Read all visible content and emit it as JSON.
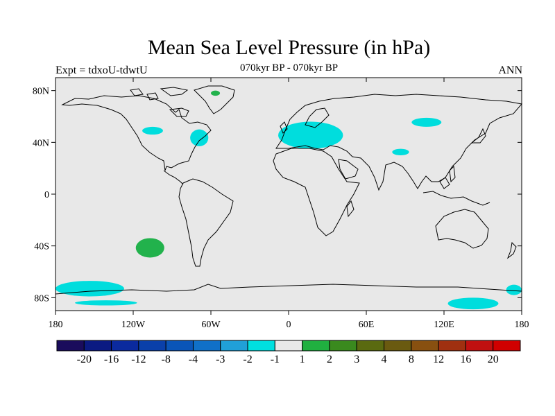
{
  "title": "Mean Sea Level Pressure (in hPa)",
  "subtitle": "070kyr BP - 070kyr BP",
  "left_label": "Expt = tdxoU-tdwtU",
  "right_label": "ANN",
  "map": {
    "lon_range": [
      -180,
      180
    ],
    "lat_range": [
      -90,
      90
    ],
    "background_color": "#e8e8e8",
    "x_ticks": [
      {
        "value": -180,
        "label": "180"
      },
      {
        "value": -120,
        "label": "120W"
      },
      {
        "value": -60,
        "label": "60W"
      },
      {
        "value": 0,
        "label": "0"
      },
      {
        "value": 60,
        "label": "60E"
      },
      {
        "value": 120,
        "label": "120E"
      },
      {
        "value": 180,
        "label": "180"
      }
    ],
    "y_ticks": [
      {
        "value": 80,
        "label": "80N"
      },
      {
        "value": 40,
        "label": "40N"
      },
      {
        "value": 0,
        "label": "0"
      },
      {
        "value": -40,
        "label": "40S"
      },
      {
        "value": -80,
        "label": "80S"
      }
    ],
    "anomalies": [
      {
        "region": "europe",
        "category": "-2 to -1",
        "color": "#00dddd",
        "lon": [
          -8,
          42
        ],
        "lat": [
          35,
          56
        ]
      },
      {
        "region": "us-east",
        "category": "-2 to -1",
        "color": "#00dddd",
        "lon": [
          -76,
          -62
        ],
        "lat": [
          37,
          50
        ]
      },
      {
        "region": "north-atlantic",
        "category": "-2 to -1",
        "color": "#00dddd",
        "lon": [
          -113,
          -97
        ],
        "lat": [
          46,
          52
        ]
      },
      {
        "region": "central-asia",
        "category": "-2 to -1",
        "color": "#00dddd",
        "lon": [
          95,
          118
        ],
        "lat": [
          52,
          59
        ]
      },
      {
        "region": "tibet",
        "category": "-2 to -1",
        "color": "#00dddd",
        "lon": [
          80,
          93
        ],
        "lat": [
          30,
          35
        ]
      },
      {
        "region": "greenland",
        "category": "1 to 2",
        "color": "#22b24c",
        "lon": [
          -60,
          -53
        ],
        "lat": [
          76,
          80
        ]
      },
      {
        "region": "south-pacific",
        "category": "1 to 2",
        "color": "#22b24c",
        "lon": [
          -118,
          -96
        ],
        "lat": [
          -49,
          -34
        ]
      },
      {
        "region": "antarctic-pacific",
        "category": "-2 to -1",
        "color": "#00dddd",
        "lon": [
          -180,
          -127
        ],
        "lat": [
          -79,
          -67
        ]
      },
      {
        "region": "antarctic-ross",
        "category": "-2 to -1",
        "color": "#00dddd",
        "lon": [
          -165,
          -117
        ],
        "lat": [
          -86,
          -82
        ]
      },
      {
        "region": "antarctic-wilkes",
        "category": "-2 to -1",
        "color": "#00dddd",
        "lon": [
          123,
          162
        ],
        "lat": [
          -89,
          -80
        ]
      },
      {
        "region": "antarctic-east",
        "category": "-2 to -1",
        "color": "#00dddd",
        "lon": [
          168,
          180
        ],
        "lat": [
          -78,
          -70
        ]
      }
    ]
  },
  "colorbar": {
    "colors": [
      "#1a0c5c",
      "#0b1a82",
      "#0b2a9e",
      "#0a40aa",
      "#0a55b8",
      "#1070c8",
      "#20a0d8",
      "#00e0e0",
      "#e8e8e8",
      "#20b040",
      "#3a8a1e",
      "#5a6a10",
      "#6a5a10",
      "#885010",
      "#a03010",
      "#c01010",
      "#d00000"
    ],
    "labels": [
      "-20",
      "-16",
      "-12",
      "-8",
      "-4",
      "-3",
      "-2",
      "-1",
      "1",
      "2",
      "3",
      "4",
      "8",
      "12",
      "16",
      "20"
    ]
  }
}
